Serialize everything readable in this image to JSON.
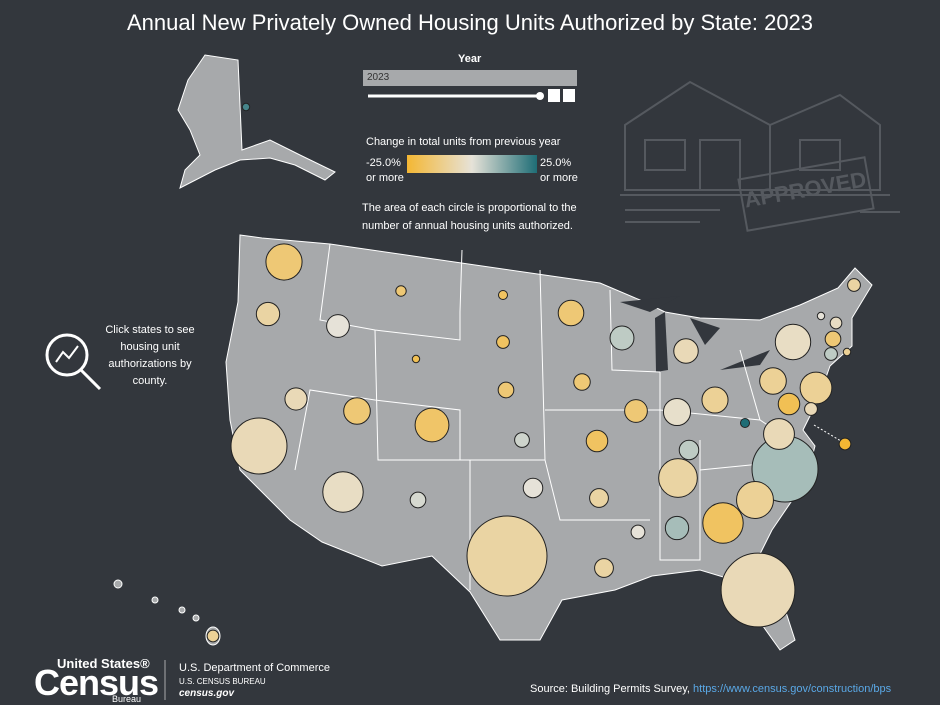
{
  "title": "Annual New Privately Owned Housing Units Authorized by State: 2023",
  "year_control": {
    "label": "Year",
    "value": "2023"
  },
  "legend": {
    "title": "Change in total units from previous year",
    "min": {
      "value": -25,
      "label": "-25.0%"
    },
    "max": {
      "value": 25,
      "label": "25.0%"
    },
    "min_note": "or more",
    "max_note": "or more",
    "colors": [
      "#f4b733",
      "#e6e2d8",
      "#1e6d76"
    ]
  },
  "size_note": "The area of each circle is proportional to the number of annual housing units authorized.",
  "click_note": "Click states to see housing unit authorizations by county.",
  "stamp": "APPROVED",
  "bubbles": {
    "units": [
      2000,
      48000,
      20000,
      19000,
      4000,
      2000,
      3000,
      6000,
      24000,
      21000,
      22000,
      18000,
      26000,
      42000,
      9000,
      8000,
      10000,
      19000,
      27000,
      25000,
      14000,
      3000,
      26000,
      46000,
      2000,
      5000,
      6000,
      9000,
      2000,
      6000,
      37000,
      6000,
      17000,
      5000,
      35000,
      160000,
      55000,
      50000,
      60000,
      20000,
      7000,
      13000,
      17000,
      14000,
      235000,
      13000,
      9000,
      60000,
      115000,
      200000,
      5000
    ],
    "change": [
      20,
      -15,
      -8,
      0,
      -15,
      -20,
      -18,
      -18,
      -15,
      5,
      -5,
      -5,
      -15,
      -17,
      -15,
      3,
      -15,
      -15,
      -2,
      -10,
      5,
      25,
      -10,
      -3,
      0,
      -3,
      -8,
      -15,
      -10,
      5,
      -10,
      -5,
      -20,
      -25,
      -5,
      8,
      -8,
      -10,
      -18,
      8,
      0,
      -8,
      -18,
      0,
      -8,
      -8,
      2,
      -3,
      -5,
      -5,
      -10
    ]
  },
  "logo": {
    "top": "United States®",
    "main": "Census",
    "bottom": "Bureau"
  },
  "agency": {
    "line1": "U.S. Department of Commerce",
    "line2": "U.S. CENSUS BUREAU",
    "line3": "census.gov"
  },
  "source": {
    "text": "Source: Building Permits Survey,",
    "link": "https://www.census.gov/construction/bps"
  }
}
